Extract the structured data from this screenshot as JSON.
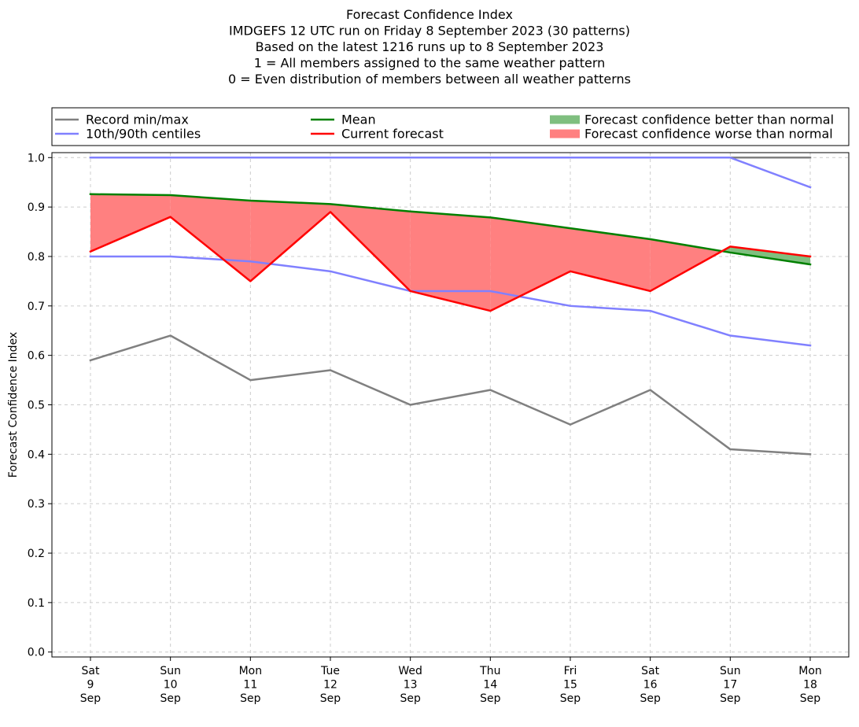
{
  "chart_data": {
    "type": "line",
    "title_lines": [
      "Forecast Confidence Index",
      "IMDGEFS 12 UTC run on Friday 8 September 2023 (30 patterns)",
      "Based on the latest 1216 runs up to 8 September 2023",
      "1 = All members assigned to the same weather pattern",
      "0 = Even distribution of members between all weather patterns"
    ],
    "ylabel": "Forecast Confidence Index",
    "xlabel": "",
    "ylim": [
      -0.01,
      1.01
    ],
    "yticks": [
      "0.0",
      "0.1",
      "0.2",
      "0.3",
      "0.4",
      "0.5",
      "0.6",
      "0.7",
      "0.8",
      "0.9",
      "1.0"
    ],
    "grid": true,
    "categories": [
      [
        "Sat",
        "9",
        "Sep"
      ],
      [
        "Sun",
        "10",
        "Sep"
      ],
      [
        "Mon",
        "11",
        "Sep"
      ],
      [
        "Tue",
        "12",
        "Sep"
      ],
      [
        "Wed",
        "13",
        "Sep"
      ],
      [
        "Thu",
        "14",
        "Sep"
      ],
      [
        "Fri",
        "15",
        "Sep"
      ],
      [
        "Sat",
        "16",
        "Sep"
      ],
      [
        "Sun",
        "17",
        "Sep"
      ],
      [
        "Mon",
        "18",
        "Sep"
      ]
    ],
    "series": [
      {
        "name": "Record min/max",
        "key": "record_min",
        "color": "#808080",
        "values": [
          0.59,
          0.64,
          0.55,
          0.57,
          0.5,
          0.53,
          0.46,
          0.53,
          0.41,
          0.4
        ]
      },
      {
        "key": "record_max",
        "color": "#808080",
        "values": [
          1.0,
          1.0,
          1.0,
          1.0,
          1.0,
          1.0,
          1.0,
          1.0,
          1.0,
          1.0
        ]
      },
      {
        "name": "10th/90th centiles",
        "key": "p10",
        "color": "#8080ff",
        "values": [
          0.8,
          0.8,
          0.79,
          0.77,
          0.73,
          0.73,
          0.7,
          0.69,
          0.64,
          0.62
        ]
      },
      {
        "key": "p90",
        "color": "#8080ff",
        "values": [
          1.0,
          1.0,
          1.0,
          1.0,
          1.0,
          1.0,
          1.0,
          1.0,
          1.0,
          0.94
        ]
      },
      {
        "name": "Mean",
        "key": "mean",
        "color": "#008000",
        "values": [
          0.926,
          0.924,
          0.913,
          0.906,
          0.891,
          0.879,
          0.857,
          0.835,
          0.808,
          0.784
        ]
      },
      {
        "name": "Current forecast",
        "key": "current",
        "color": "#ff0000",
        "values": [
          0.81,
          0.88,
          0.75,
          0.89,
          0.73,
          0.69,
          0.77,
          0.73,
          0.82,
          0.8
        ]
      }
    ],
    "fills": [
      {
        "name": "Forecast confidence better than normal",
        "color": "#7fbf7f"
      },
      {
        "name": "Forecast confidence worse than normal",
        "color": "#ff8080"
      }
    ],
    "legend": {
      "placement": "top, above plot, 3 columns",
      "entries": [
        {
          "label": "Record min/max",
          "kind": "line",
          "color": "#808080"
        },
        {
          "label": "10th/90th centiles",
          "kind": "line",
          "color": "#8080ff"
        },
        {
          "label": "Mean",
          "kind": "line",
          "color": "#008000"
        },
        {
          "label": "Current forecast",
          "kind": "line",
          "color": "#ff0000"
        },
        {
          "label": "Forecast confidence better than normal",
          "kind": "patch",
          "color": "#7fbf7f"
        },
        {
          "label": "Forecast confidence worse than normal",
          "kind": "patch",
          "color": "#ff8080"
        }
      ]
    }
  }
}
